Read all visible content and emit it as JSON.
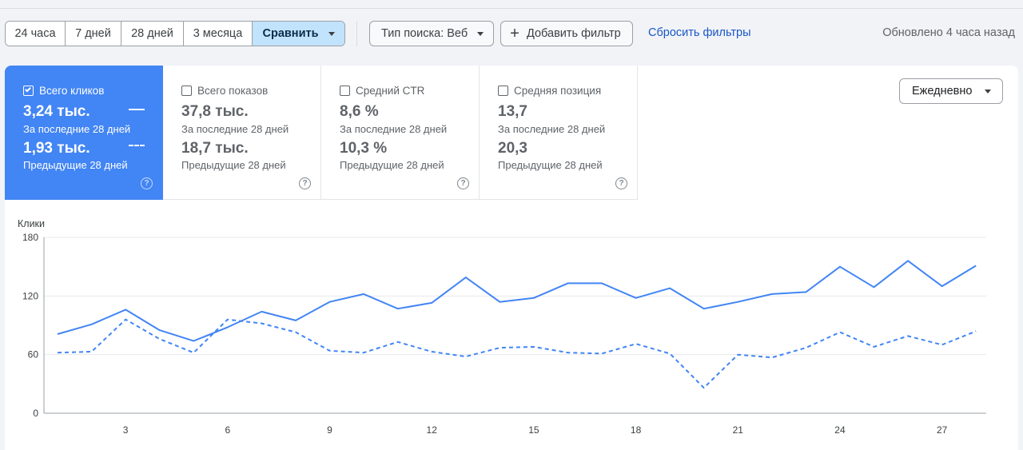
{
  "toolbar": {
    "ranges": [
      "24 часа",
      "7 дней",
      "28 дней",
      "3 месяца"
    ],
    "compare_label": "Сравнить",
    "search_type_label": "Тип поиска: Веб",
    "add_filter_label": "Добавить фильтр",
    "reset_filters_label": "Сбросить фильтры",
    "updated_text": "Обновлено 4 часа назад"
  },
  "metrics": [
    {
      "title": "Всего кликов",
      "checked": true,
      "current": "3,24 тыс.",
      "current_label": "За последние 28 дней",
      "previous": "1,93 тыс.",
      "previous_label": "Предыдущие 28 дней"
    },
    {
      "title": "Всего показов",
      "checked": false,
      "current": "37,8 тыс.",
      "current_label": "За последние 28 дней",
      "previous": "18,7 тыс.",
      "previous_label": "Предыдущие 28 дней"
    },
    {
      "title": "Средний CTR",
      "checked": false,
      "current": "8,6 %",
      "current_label": "За последние 28 дней",
      "previous": "10,3 %",
      "previous_label": "Предыдущие 28 дней"
    },
    {
      "title": "Средняя позиция",
      "checked": false,
      "current": "13,7",
      "current_label": "За последние 28 дней",
      "previous": "20,3",
      "previous_label": "Предыдущие 28 дней"
    }
  ],
  "granularity_label": "Ежедневно",
  "help_glyph": "?",
  "colors": {
    "accent": "#4285f4",
    "compare_active": "#c2e3fc",
    "link": "#1a57c7"
  },
  "chart_data": {
    "type": "line",
    "ylabel": "Клики",
    "ylim": [
      0,
      180
    ],
    "yticks": [
      0,
      60,
      120,
      180
    ],
    "x": [
      1,
      2,
      3,
      4,
      5,
      6,
      7,
      8,
      9,
      10,
      11,
      12,
      13,
      14,
      15,
      16,
      17,
      18,
      19,
      20,
      21,
      22,
      23,
      24,
      25,
      26,
      27,
      28
    ],
    "xticks": [
      3,
      6,
      9,
      12,
      15,
      18,
      21,
      24,
      27
    ],
    "grid": true,
    "series": [
      {
        "style": "solid",
        "values": [
          81,
          91,
          106,
          85,
          74,
          88,
          104,
          95,
          114,
          122,
          107,
          113,
          139,
          114,
          118,
          133,
          133,
          118,
          128,
          107,
          114,
          122,
          124,
          150,
          129,
          156,
          130,
          151
        ]
      },
      {
        "style": "dashed",
        "values": [
          62,
          63,
          96,
          76,
          62,
          96,
          92,
          83,
          64,
          62,
          73,
          63,
          58,
          67,
          68,
          62,
          61,
          71,
          61,
          26,
          60,
          57,
          67,
          83,
          68,
          79,
          70,
          84
        ]
      }
    ]
  }
}
